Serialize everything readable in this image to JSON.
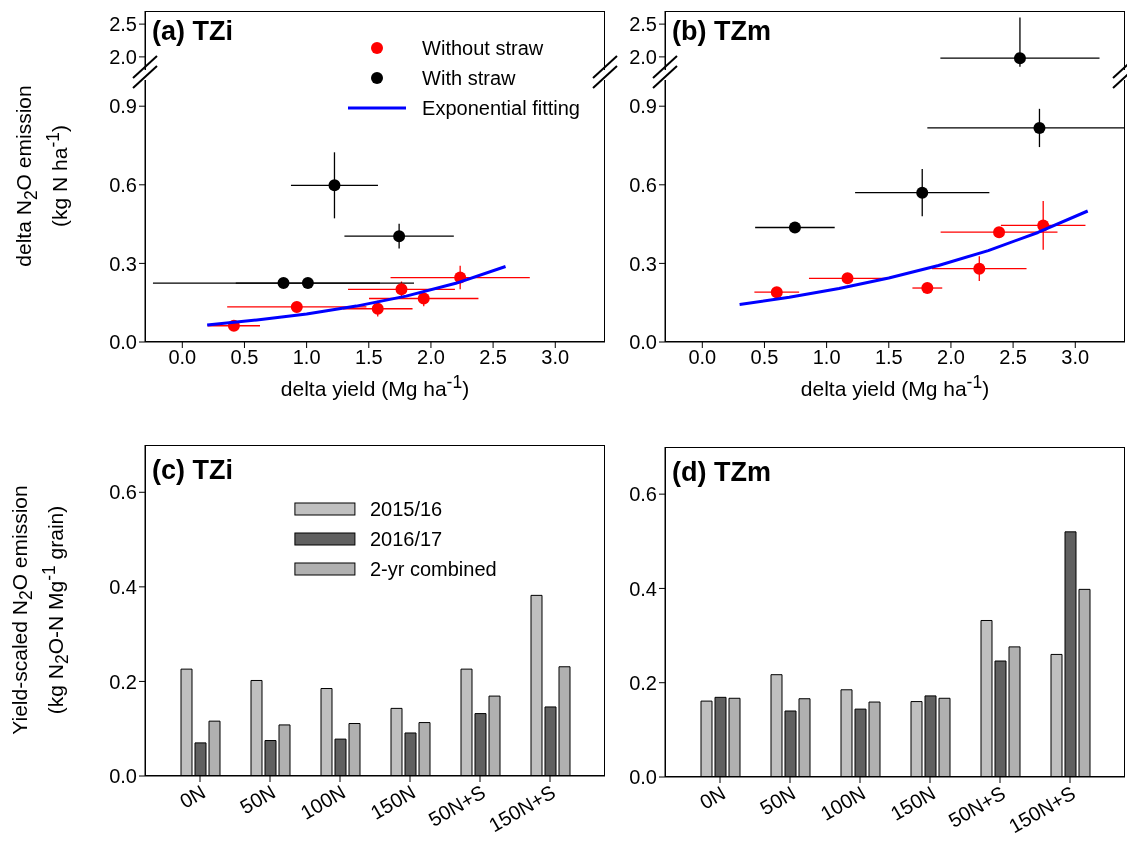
{
  "chart_data": [
    {
      "type": "scatter",
      "title": "(a) TZi",
      "xlim": [
        -0.3,
        3.4
      ],
      "ylim": [
        1.8,
        2.7
      ],
      "yticks": [
        {
          "value": 2,
          "label": "2.0"
        },
        {
          "value": 2.5,
          "label": "2.5"
        }
      ],
      "tick_labels": "y"
    },
    {
      "type": "scatter",
      "xlabel": "delta yield (Mg ha$^{-1}$)",
      "ylabel": "delta N$_{2}$O emission (kg N ha$^{-1}$)",
      "xlim": [
        -0.3,
        3.4
      ],
      "xticks": [
        {
          "value": 0,
          "label": "0.0"
        },
        {
          "value": 0.5,
          "label": "0.5"
        },
        {
          "value": 1,
          "label": "1.0"
        },
        {
          "value": 1.5,
          "label": "1.5"
        },
        {
          "value": 2,
          "label": "2.0"
        },
        {
          "value": 2.5,
          "label": "2.5"
        },
        {
          "value": 3,
          "label": "3.0"
        }
      ],
      "ylim": [
        0,
        1.0
      ],
      "yticks": [
        {
          "value": 0,
          "label": "0.0"
        },
        {
          "value": 0.3,
          "label": "0.3"
        },
        {
          "value": 0.6,
          "label": "0.6"
        },
        {
          "value": 0.9,
          "label": "0.9"
        }
      ],
      "marker": "circle",
      "legend": "top right",
      "series": [
        {
          "name": "Without straw",
          "color": "#ff0000",
          "x": [
            0.415,
            0.921,
            1.572,
            1.763,
            1.942,
            2.235
          ],
          "values": [
            0.062,
            0.134,
            0.127,
            0.201,
            0.166,
            0.246
          ],
          "xerrors": [
            0.21,
            0.56,
            0.28,
            0.43,
            0.44,
            0.56
          ],
          "errors": [
            0.02,
            0.02,
            0.03,
            0.03,
            0.03,
            0.045
          ]
        },
        {
          "name": "With straw",
          "color": "#000000",
          "x": [
            0.814,
            1.01,
            1.224,
            1.744
          ],
          "values": [
            0.225,
            0.225,
            0.598,
            0.404
          ],
          "xerrors": [
            1.05,
            0.58,
            0.35,
            0.44
          ],
          "errors": [
            0.015,
            0.015,
            0.126,
            0.047
          ]
        },
        {
          "name": "Exponential fitting",
          "type": "line",
          "marker": "none",
          "color": "#0000ff",
          "x": [
            0.2,
            0.6,
            1.0,
            1.4,
            1.8,
            2.2,
            2.6
          ],
          "values": [
            0.065,
            0.084,
            0.107,
            0.137,
            0.175,
            0.224,
            0.288
          ]
        }
      ]
    },
    {
      "type": "scatter",
      "title": "(b) TZm",
      "xlim": [
        -0.3,
        3.4
      ],
      "ylim": [
        1.8,
        2.7
      ],
      "yticks": [
        {
          "value": 2,
          "label": "2.0"
        },
        {
          "value": 2.5,
          "label": "2.5"
        }
      ],
      "tick_labels": "y",
      "marker": "circle",
      "series": [
        {
          "color": "#000000",
          "x": [
            2.555
          ],
          "values": [
            1.98
          ],
          "xerrors": [
            0.64
          ],
          "errors": [
            [
              1.85,
              2.6
            ]
          ]
        }
      ]
    },
    {
      "type": "scatter",
      "xlabel": "delta yield (Mg ha$^{-1}$)",
      "xlim": [
        -0.3,
        3.4
      ],
      "xticks": [
        {
          "value": 0,
          "label": "0.0"
        },
        {
          "value": 0.5,
          "label": "0.5"
        },
        {
          "value": 1,
          "label": "1.0"
        },
        {
          "value": 1.5,
          "label": "1.5"
        },
        {
          "value": 2,
          "label": "2.0"
        },
        {
          "value": 2.5,
          "label": "2.5"
        },
        {
          "value": 3,
          "label": "3.0"
        }
      ],
      "ylim": [
        0,
        1.0
      ],
      "yticks": [
        {
          "value": 0,
          "label": "0.0"
        },
        {
          "value": 0.3,
          "label": "0.3"
        },
        {
          "value": 0.6,
          "label": "0.6"
        },
        {
          "value": 0.9,
          "label": "0.9"
        }
      ],
      "marker": "circle",
      "series": [
        {
          "color": "#ff0000",
          "x": [
            0.599,
            1.168,
            1.81,
            2.228,
            2.387,
            2.742
          ],
          "values": [
            0.19,
            0.243,
            0.206,
            0.28,
            0.419,
            0.445
          ],
          "xerrors": [
            0.18,
            0.31,
            0.12,
            0.38,
            0.47,
            0.34
          ],
          "errors": [
            0.02,
            0.02,
            0.02,
            0.047,
            0.02,
            0.093
          ]
        },
        {
          "color": "#000000",
          "x": [
            0.745,
            1.769,
            2.712
          ],
          "values": [
            0.437,
            0.57,
            0.817
          ],
          "xerrors": [
            0.32,
            0.54,
            [
              1.81,
              3.4
            ]
          ],
          "errors": [
            0.02,
            0.09,
            0.073
          ]
        },
        {
          "type": "line",
          "marker": "none",
          "color": "#0000ff",
          "x": [
            0.3,
            0.7,
            1.1,
            1.5,
            1.9,
            2.3,
            2.7,
            3.1
          ],
          "values": [
            0.143,
            0.171,
            0.204,
            0.244,
            0.292,
            0.349,
            0.418,
            0.5
          ]
        }
      ]
    },
    {
      "type": "bar",
      "title": "(c) TZi",
      "ylabel": "Yield-scaled N$_{2}$O emission (kg N$_{2}$O-N Mg$^{-1}$ grain)",
      "categories": [
        "0N",
        "50N",
        "100N",
        "150N",
        "50N+S",
        "150N+S"
      ],
      "ylim": [
        0,
        0.7
      ],
      "yticks": [
        {
          "value": 0,
          "label": "0.0"
        },
        {
          "value": 0.2,
          "label": "0.2"
        },
        {
          "value": 0.4,
          "label": "0.4"
        },
        {
          "value": 0.6,
          "label": "0.6"
        }
      ],
      "legend": "top",
      "series": [
        {
          "name": "2015/16",
          "color": "#c0c0c0",
          "values": [
            0.226,
            0.202,
            0.185,
            0.143,
            0.226,
            0.382
          ]
        },
        {
          "name": "2016/17",
          "color": "#606060",
          "values": [
            0.07,
            0.075,
            0.078,
            0.091,
            0.132,
            0.146
          ]
        },
        {
          "name": "2-yr combined",
          "color": "#b0b0b0",
          "values": [
            0.116,
            0.108,
            0.111,
            0.113,
            0.169,
            0.231
          ]
        }
      ]
    },
    {
      "type": "bar",
      "title": "(d) TZm",
      "categories": [
        "0N",
        "50N",
        "100N",
        "150N",
        "50N+S",
        "150N+S"
      ],
      "ylim": [
        0,
        0.7
      ],
      "yticks": [
        {
          "value": 0,
          "label": "0.0"
        },
        {
          "value": 0.2,
          "label": "0.2"
        },
        {
          "value": 0.4,
          "label": "0.4"
        },
        {
          "value": 0.6,
          "label": "0.6"
        }
      ],
      "series": [
        {
          "color": "#c0c0c0",
          "values": [
            0.161,
            0.217,
            0.185,
            0.16,
            0.332,
            0.26
          ]
        },
        {
          "color": "#606060",
          "values": [
            0.169,
            0.14,
            0.144,
            0.172,
            0.246,
            0.52
          ]
        },
        {
          "color": "#b0b0b0",
          "values": [
            0.167,
            0.166,
            0.159,
            0.167,
            0.276,
            0.398
          ]
        }
      ]
    }
  ]
}
